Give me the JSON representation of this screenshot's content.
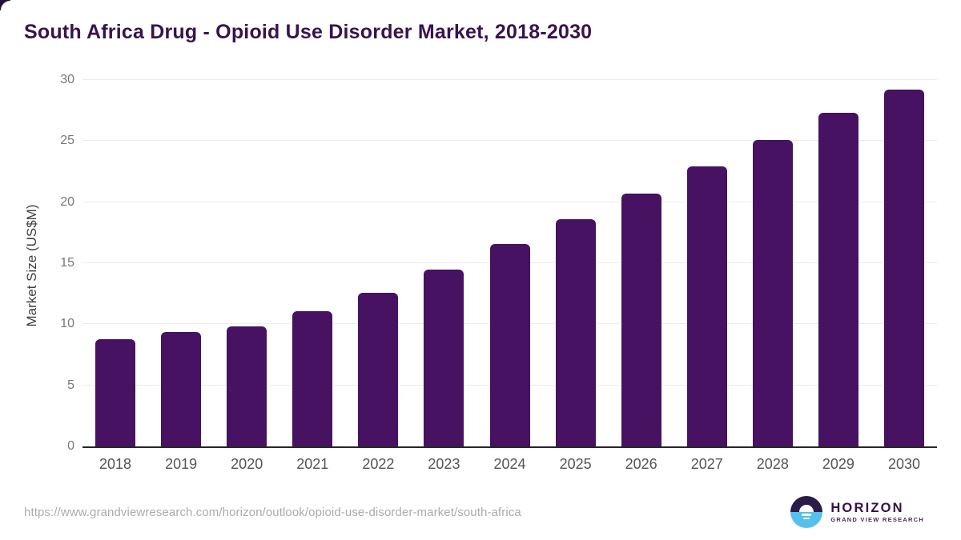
{
  "page": {
    "title": "South Africa Drug - Opioid Use Disorder Market, 2018-2030"
  },
  "chart_data": {
    "type": "bar",
    "title": "South Africa Drug - Opioid Use Disorder Market, 2018-2030",
    "categories": [
      "2018",
      "2019",
      "2020",
      "2021",
      "2022",
      "2023",
      "2024",
      "2025",
      "2026",
      "2027",
      "2028",
      "2029",
      "2030"
    ],
    "values": [
      8.8,
      9.4,
      9.8,
      11.1,
      12.6,
      14.5,
      16.6,
      18.6,
      20.7,
      22.9,
      25.1,
      27.3,
      29.2
    ],
    "xlabel": "",
    "ylabel": "Market Size (US$M)",
    "ylim": [
      0,
      30
    ],
    "yticks": [
      0,
      5,
      10,
      15,
      20,
      25,
      30
    ],
    "grid": true,
    "legend": false,
    "bar_color": "#461261"
  },
  "footer": {
    "source_url": "https://www.grandviewresearch.com/horizon/outlook/opioid-use-disorder-market/south-africa",
    "logo": {
      "icon": "horizon-sunset-icon",
      "name": "HORIZON",
      "subtitle": "GRAND VIEW RESEARCH",
      "icon_dark_color": "#2b1b49",
      "icon_blue_color": "#55c0e9"
    }
  },
  "colors": {
    "title_text": "#38134e",
    "bar": "#461261",
    "gridline": "#ececec",
    "axis_line": "#262626",
    "y_tick_text": "#777777",
    "x_label_text": "#555555",
    "url_text": "#ababab",
    "background": "#ffffff"
  }
}
